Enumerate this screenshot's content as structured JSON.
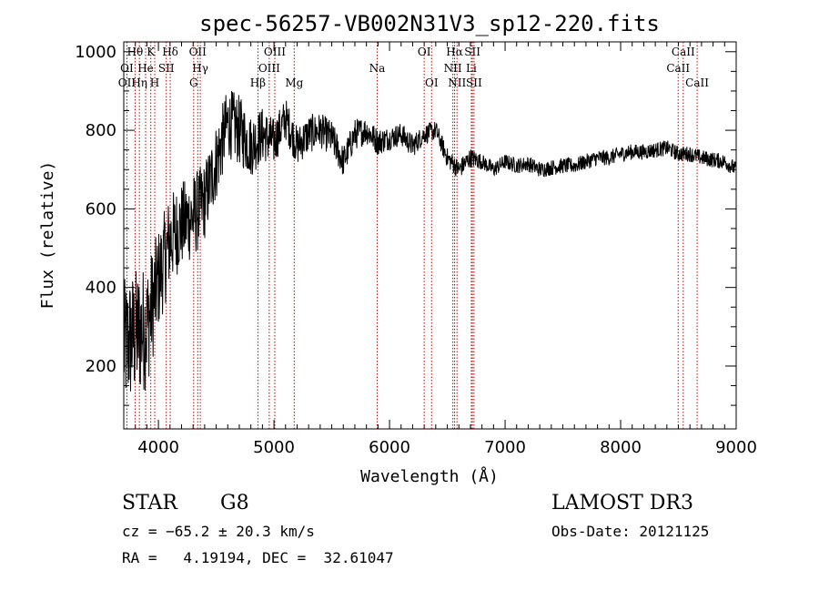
{
  "chart_data": {
    "type": "line",
    "title": "spec-56257-VB002N31V3_sp12-220.fits",
    "xlabel": "Wavelength (Å)",
    "ylabel": "Flux (relative)",
    "xlim": [
      3700,
      9000
    ],
    "ylim": [
      40,
      1025
    ],
    "xticks": [
      4000,
      5000,
      6000,
      7000,
      8000,
      9000
    ],
    "yticks": [
      200,
      400,
      600,
      800,
      1000
    ],
    "grid": false,
    "line_color": "#000000",
    "marker_color": "#cc0000",
    "series": [
      {
        "x": [
          3700,
          3800,
          3900,
          4000,
          4100,
          4200,
          4300,
          4400,
          4500,
          4600,
          4700,
          4800,
          4900,
          5000,
          5100,
          5200,
          5300,
          5400,
          5500,
          5600,
          5700,
          5800,
          5900,
          6000,
          6100,
          6200,
          6300,
          6400,
          6500,
          6600,
          6700,
          6800,
          6900,
          7000,
          7100,
          7200,
          7300,
          7400,
          7500,
          7600,
          7700,
          7800,
          7900,
          8000,
          8100,
          8200,
          8300,
          8400,
          8500,
          8600,
          8700,
          8800,
          8900,
          9000
        ],
        "y": [
          250,
          280,
          300,
          420,
          520,
          560,
          580,
          620,
          720,
          820,
          800,
          760,
          790,
          770,
          830,
          760,
          790,
          800,
          780,
          720,
          790,
          800,
          770,
          780,
          790,
          760,
          790,
          800,
          730,
          700,
          730,
          720,
          700,
          720,
          710,
          715,
          700,
          705,
          710,
          710,
          720,
          730,
          730,
          740,
          745,
          745,
          750,
          755,
          740,
          740,
          730,
          725,
          720,
          700
        ],
        "amplitude": [
          170,
          170,
          160,
          130,
          120,
          110,
          110,
          100,
          100,
          90,
          90,
          80,
          70,
          60,
          55,
          50,
          50,
          45,
          45,
          40,
          40,
          35,
          35,
          30,
          30,
          30,
          25,
          25,
          25,
          25,
          25,
          20,
          20,
          20,
          20,
          20,
          20,
          20,
          20,
          20,
          20,
          20,
          20,
          20,
          20,
          20,
          20,
          20,
          20,
          20,
          20,
          20,
          20,
          20
        ]
      }
    ],
    "lines": [
      {
        "name": "Hθ",
        "x": 3798,
        "row": 0
      },
      {
        "name": "K",
        "x": 3934,
        "row": 0
      },
      {
        "name": "Hδ",
        "x": 4102,
        "row": 0
      },
      {
        "name": "OII",
        "x": 4340,
        "row": 0
      },
      {
        "name": "OIII",
        "x": 5007,
        "row": 0
      },
      {
        "name": "OI",
        "x": 6300,
        "row": 0
      },
      {
        "name": "Hα",
        "x": 6563,
        "row": 0
      },
      {
        "name": "SII",
        "x": 6717,
        "row": 0
      },
      {
        "name": "CaII",
        "x": 8542,
        "row": 0
      },
      {
        "name": "OI",
        "x": 3727,
        "row": 1
      },
      {
        "name": "He",
        "x": 3889,
        "row": 1
      },
      {
        "name": "SII",
        "x": 4068,
        "row": 1
      },
      {
        "name": "Hγ",
        "x": 4362,
        "row": 1
      },
      {
        "name": "OIII",
        "x": 4959,
        "row": 1
      },
      {
        "name": "Na",
        "x": 5893,
        "row": 1
      },
      {
        "name": "NII",
        "x": 6548,
        "row": 1
      },
      {
        "name": "Li",
        "x": 6708,
        "row": 1
      },
      {
        "name": "CaII",
        "x": 8498,
        "row": 1
      },
      {
        "name": "OII",
        "x": 3727,
        "row": 2
      },
      {
        "name": "Hη",
        "x": 3835,
        "row": 2
      },
      {
        "name": "H",
        "x": 3968,
        "row": 2
      },
      {
        "name": "G",
        "x": 4305,
        "row": 2
      },
      {
        "name": "Hβ",
        "x": 4861,
        "row": 2
      },
      {
        "name": "Mg",
        "x": 5175,
        "row": 2
      },
      {
        "name": "OI",
        "x": 6364,
        "row": 2
      },
      {
        "name": "NII",
        "x": 6584,
        "row": 2
      },
      {
        "name": "SII",
        "x": 6731,
        "row": 2
      },
      {
        "name": "CaII",
        "x": 8662,
        "row": 2
      }
    ],
    "marker_x": [
      3727,
      3798,
      3835,
      3889,
      3934,
      3968,
      4068,
      4102,
      4305,
      4340,
      4362,
      4861,
      4959,
      5007,
      5175,
      5893,
      6300,
      6364,
      6548,
      6563,
      6584,
      6708,
      6717,
      6731,
      8498,
      8542,
      8662
    ]
  },
  "info": {
    "object_class": "STAR",
    "subclass": "G8",
    "survey": "LAMOST DR3",
    "cz": "cz = −65.2 ± 20.3 km/s",
    "obs_date": "Obs-Date: 20121125",
    "coords": "RA =   4.19194, DEC =  32.61047"
  }
}
